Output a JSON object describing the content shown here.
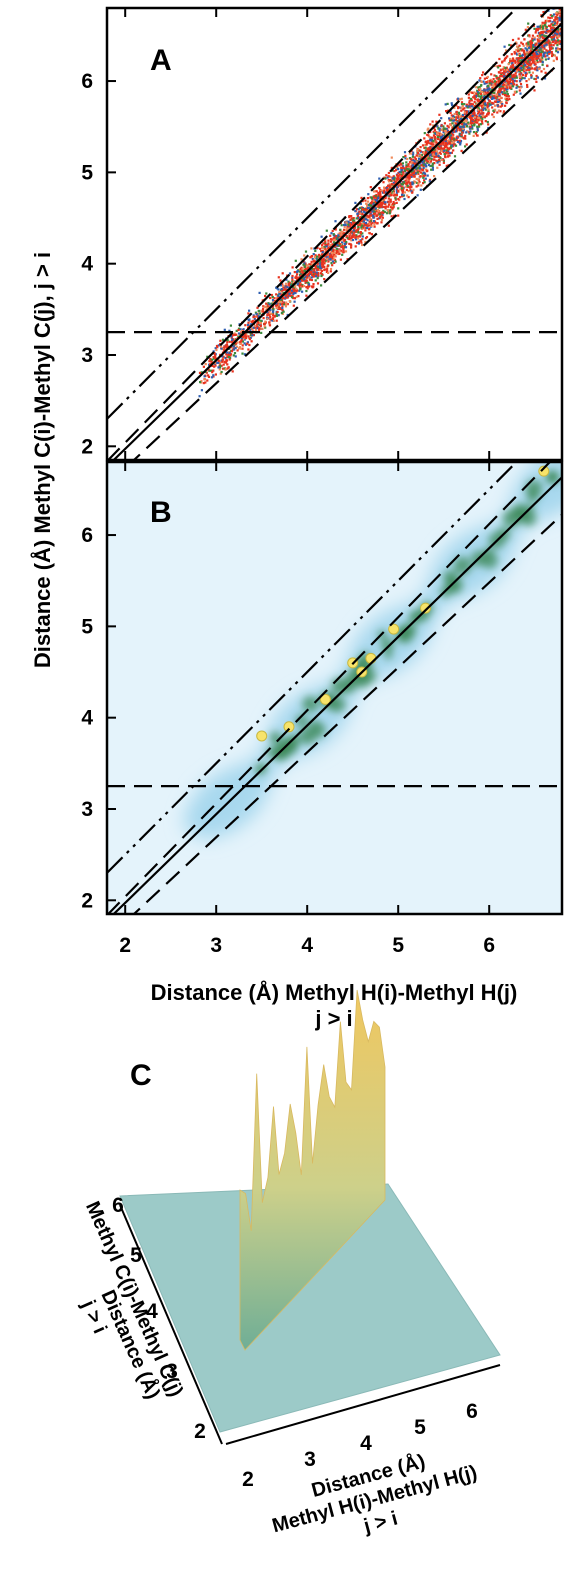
{
  "chart_data": [
    {
      "panel": "A",
      "type": "scatter",
      "xlabel": "Distance (Å) Methyl H(i)-Methyl H(j) j > i",
      "ylabel": "Distance (Å) Methyl C(i)-Methyl C(j), j > i",
      "xlim": [
        1.8,
        6.8
      ],
      "ylim": [
        1.85,
        6.8
      ],
      "yticks": [
        2,
        3,
        4,
        5,
        6
      ],
      "point_colors": [
        "#e8321e",
        "#2f5fb0",
        "#3c8a3c",
        "#f08a5a"
      ],
      "point_cloud": {
        "x_range": [
          2.8,
          6.8
        ],
        "center_line": "y = 0.971x + 0.03",
        "spread_sd": 0.14
      },
      "lines": [
        {
          "style": "solid",
          "slope": 0.971,
          "intercept": 0.03
        },
        {
          "style": "dash-dot-dot",
          "slope": 1.0,
          "intercept": 0.5
        },
        {
          "style": "dashed",
          "slope": 0.93,
          "intercept": -0.1
        },
        {
          "style": "dashed",
          "slope": 1.02,
          "intercept": 0.0
        },
        {
          "style": "dashed",
          "slope": 0,
          "intercept": 3.25
        }
      ]
    },
    {
      "panel": "B",
      "type": "heatmap",
      "xlabel": "Distance (Å) Methyl H(i)-Methyl H(j) j > i",
      "xlim": [
        1.8,
        6.8
      ],
      "ylim": [
        1.85,
        6.8
      ],
      "xticks": [
        2,
        3,
        4,
        5,
        6
      ],
      "yticks": [
        2,
        3,
        4,
        5,
        6
      ],
      "colors": {
        "background": "#e4f3fb",
        "low": "#a8d8ee",
        "mid": "#3e8a5a",
        "high": "#f7e36a"
      },
      "hotspots": [
        {
          "x": 3.5,
          "y": 3.8
        },
        {
          "x": 3.8,
          "y": 3.9
        },
        {
          "x": 4.2,
          "y": 4.2
        },
        {
          "x": 4.5,
          "y": 4.6
        },
        {
          "x": 4.6,
          "y": 4.5
        },
        {
          "x": 4.7,
          "y": 4.65
        },
        {
          "x": 4.95,
          "y": 4.97
        },
        {
          "x": 5.3,
          "y": 5.2
        },
        {
          "x": 6.6,
          "y": 6.7
        }
      ],
      "lines": [
        {
          "style": "solid",
          "slope": 0.971,
          "intercept": 0.03
        },
        {
          "style": "dash-dot-dot",
          "slope": 1.0,
          "intercept": 0.5
        },
        {
          "style": "dashed",
          "slope": 0.93,
          "intercept": -0.1
        },
        {
          "style": "dashed",
          "slope": 1.02,
          "intercept": 0.0
        },
        {
          "style": "dashed",
          "slope": 0,
          "intercept": 3.25
        }
      ]
    },
    {
      "panel": "C",
      "type": "surface",
      "xlabel": "Distance (Å) Methyl H(i)-Methyl H(j) j > i",
      "ylabel": "Methyl C(i)-Methyl C(j) Distance (Å) j > i",
      "xticks": [
        2,
        3,
        4,
        5,
        6
      ],
      "yticks": [
        2,
        3,
        4,
        5,
        6
      ],
      "colors": {
        "plane": "#9ccac8",
        "ridge_low": "#7ab79a",
        "ridge_high": "#eec86a",
        "peak": "#d9923a"
      }
    }
  ],
  "labels": {
    "panel_a": "A",
    "panel_b": "B",
    "panel_c": "C",
    "y_axis_ab": "Distance (Å) Methyl C(i)-Methyl C(j), j > i",
    "x_axis_b_line1": "Distance (Å) Methyl H(i)-Methyl H(j)",
    "x_axis_b_line2": "j > i",
    "c_x_line1": "Distance (Å)",
    "c_x_line2": "Methyl H(i)-Methyl H(j)",
    "c_x_line3": "j > i",
    "c_y_line1": "Methyl C(i)-Methyl C(j)",
    "c_y_line2": "Distance (Å)",
    "c_y_line3": "j > i"
  }
}
